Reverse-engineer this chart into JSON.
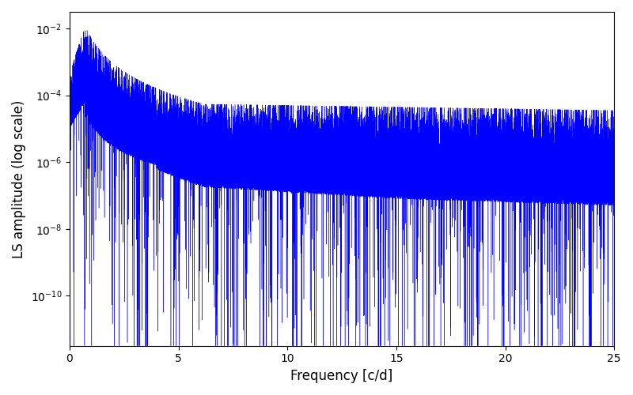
{
  "xlabel": "Frequency [c/d]",
  "ylabel": "LS amplitude (log scale)",
  "line_color": "#0000ff",
  "xlim": [
    0,
    25
  ],
  "ylim_log": [
    -11.5,
    -1.5
  ],
  "yticks": [
    1e-10,
    1e-08,
    1e-06,
    0.0001,
    0.01
  ],
  "xticks": [
    0,
    5,
    10,
    15,
    20,
    25
  ],
  "figsize": [
    8.0,
    5.0
  ],
  "dpi": 100,
  "num_points": 50000,
  "seed": 42,
  "background_color": "#ffffff"
}
